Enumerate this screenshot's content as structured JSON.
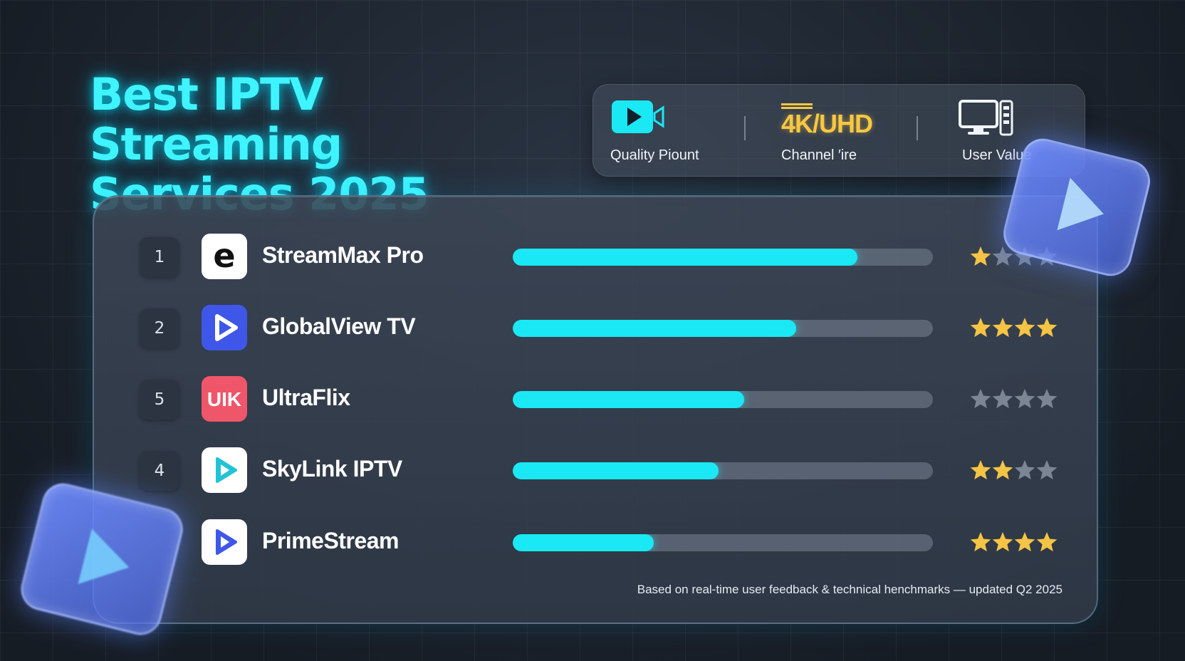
{
  "title": {
    "line1": "Best IPTV Streaming",
    "line2": "Services 2025"
  },
  "metrics": [
    {
      "icon": "video-camera-icon",
      "label": "Quality P​iount"
    },
    {
      "icon": "4k-uhd-icon",
      "badge": "4K/UHD",
      "label": "Channel ′ire"
    },
    {
      "icon": "monitor-icon",
      "label": "User Value"
    }
  ],
  "services": [
    {
      "rank": "1",
      "name": "StreamMax Pro",
      "logo": "e-logo-icon",
      "score_fraction": 0.82,
      "stars_filled": 1,
      "stars_total": 4
    },
    {
      "rank": "2",
      "name": "GlobalView TV",
      "logo": "play-logo-icon",
      "score_fraction": 0.675,
      "stars_filled": 4,
      "stars_total": 4
    },
    {
      "rank": "5",
      "name": "UltraFlix",
      "logo": "uik-logo-icon",
      "logo_text": "UIK",
      "score_fraction": 0.55,
      "stars_filled": 0,
      "stars_total": 4
    },
    {
      "rank": "4",
      "name": "SkyLink IPTV",
      "logo": "teal-play-logo-icon",
      "score_fraction": 0.49,
      "stars_filled": 2,
      "stars_total": 4
    },
    {
      "rank": "",
      "name": "PrimeStream",
      "logo": "blue-play-logo-icon",
      "score_fraction": 0.335,
      "stars_filled": 4,
      "stars_total": 4
    }
  ],
  "footnote": "Based on real-time user feedback & technical henchmarks — updated Q2 2025",
  "colors": {
    "accent": "#1ae8f4",
    "title": "#3ff4ff",
    "star": "#f5c445",
    "star_empty": "#7b8594",
    "badge": "#f7c742"
  }
}
